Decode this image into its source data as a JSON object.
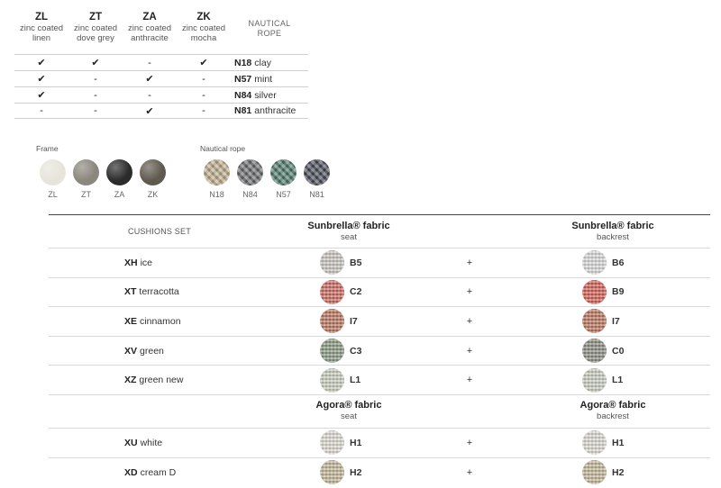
{
  "frame_finishes": [
    {
      "code": "ZL",
      "line1": "zinc coated",
      "line2": "linen"
    },
    {
      "code": "ZT",
      "line1": "zinc coated",
      "line2": "dove grey"
    },
    {
      "code": "ZA",
      "line1": "zinc coated",
      "line2": "anthracite"
    },
    {
      "code": "ZK",
      "line1": "zinc coated",
      "line2": "mocha"
    }
  ],
  "rope_header": {
    "line1": "NAUTICAL",
    "line2": "ROPE"
  },
  "compat_rows": [
    {
      "marks": [
        "✔",
        "✔",
        "-",
        "✔"
      ],
      "rope_code": "N18",
      "rope_name": "clay"
    },
    {
      "marks": [
        "✔",
        "-",
        "✔",
        "-"
      ],
      "rope_code": "N57",
      "rope_name": "mint"
    },
    {
      "marks": [
        "✔",
        "-",
        "-",
        "-"
      ],
      "rope_code": "N84",
      "rope_name": "silver"
    },
    {
      "marks": [
        "-",
        "-",
        "✔",
        "-"
      ],
      "rope_code": "N81",
      "rope_name": "anthracite"
    }
  ],
  "frame_swatches": {
    "title": "Frame",
    "items": [
      {
        "label": "ZL",
        "color": "#e7e4dc"
      },
      {
        "label": "ZT",
        "color": "#8b877d"
      },
      {
        "label": "ZA",
        "color": "#2b2b2c"
      },
      {
        "label": "ZK",
        "color": "#5f5a4e"
      }
    ]
  },
  "rope_swatches": {
    "title": "Nautical rope",
    "items": [
      {
        "label": "N18",
        "color": "#bfae8c"
      },
      {
        "label": "N84",
        "color": "#6b6d70"
      },
      {
        "label": "N57",
        "color": "#4f7a6c"
      },
      {
        "label": "N81",
        "color": "#4a4c58"
      }
    ]
  },
  "cushions": {
    "set_label": "CUSHIONS SET",
    "sunbrella": {
      "seat_title": "Sunbrella® fabric",
      "seat_sub": "seat",
      "back_title": "Sunbrella® fabric",
      "back_sub": "backrest"
    },
    "agora": {
      "seat_title": "Agora® fabric",
      "seat_sub": "seat",
      "back_title": "Agora® fabric",
      "back_sub": "backrest"
    },
    "plus": "+",
    "sunbrella_rows": [
      {
        "code": "XH",
        "name": "ice",
        "seat": "B5",
        "seat_color": "#c9c5be",
        "back": "B6",
        "back_color": "#d8d8d8"
      },
      {
        "code": "XT",
        "name": "terracotta",
        "seat": "C2",
        "seat_color": "#c96b62",
        "back": "B9",
        "back_color": "#cf6256"
      },
      {
        "code": "XE",
        "name": "cinnamon",
        "seat": "I7",
        "seat_color": "#b9775f",
        "back": "I7",
        "back_color": "#b9775f"
      },
      {
        "code": "XV",
        "name": "green",
        "seat": "C3",
        "seat_color": "#8a9a83",
        "back": "C0",
        "back_color": "#8c8d82"
      },
      {
        "code": "XZ",
        "name": "green new",
        "seat": "L1",
        "seat_color": "#c9cdbf",
        "back": "L1",
        "back_color": "#c9cdbf"
      }
    ],
    "agora_rows": [
      {
        "code": "XU",
        "name": "white",
        "seat": "H1",
        "seat_color": "#dcd9cf",
        "back": "H1",
        "back_color": "#dcd9cf"
      },
      {
        "code": "XD",
        "name": "cream D",
        "seat": "H2",
        "seat_color": "#c2b699",
        "back": "H2",
        "back_color": "#c2b699"
      }
    ]
  }
}
